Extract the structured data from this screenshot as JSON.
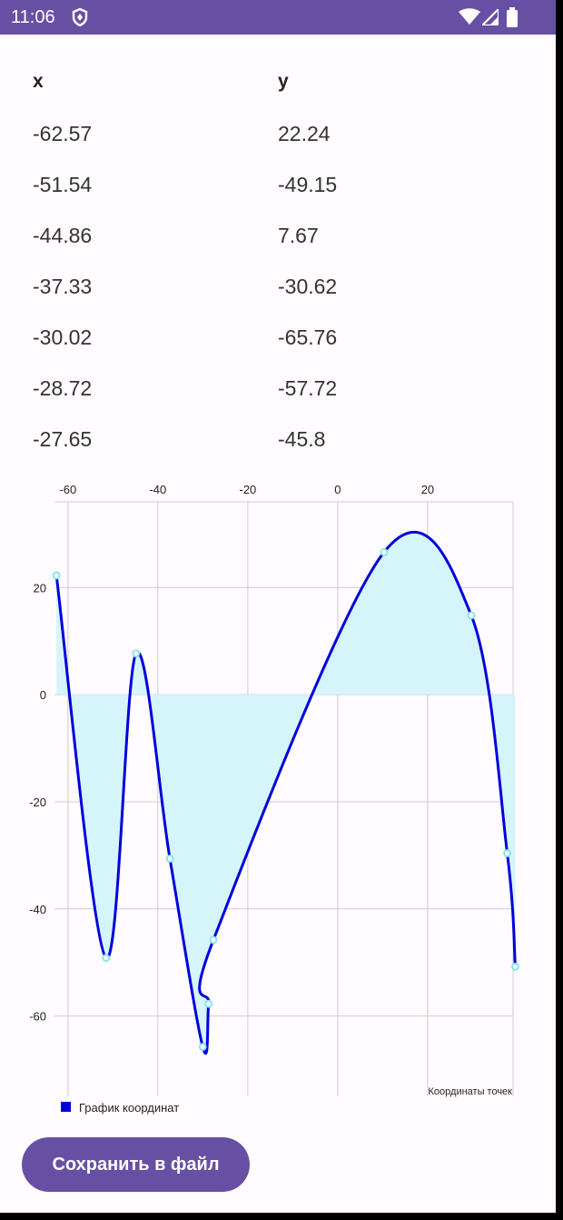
{
  "status_bar": {
    "time": "11:06",
    "icons": [
      "shield-icon",
      "wifi-icon",
      "signal-icon",
      "battery-icon"
    ]
  },
  "table": {
    "headers": {
      "x": "x",
      "y": "y"
    },
    "rows": [
      {
        "x": "-62.57",
        "y": "22.24"
      },
      {
        "x": "-51.54",
        "y": "-49.15"
      },
      {
        "x": "-44.86",
        "y": "7.67"
      },
      {
        "x": "-37.33",
        "y": "-30.62"
      },
      {
        "x": "-30.02",
        "y": "-65.76"
      },
      {
        "x": "-28.72",
        "y": "-57.72"
      },
      {
        "x": "-27.65",
        "y": "-45.8"
      }
    ]
  },
  "chart_data": {
    "type": "line",
    "description": "Координаты точек",
    "legend": {
      "label": "График координат",
      "placement": "bottom-left"
    },
    "xlim": [
      -63,
      39
    ],
    "ylim": [
      -75,
      36
    ],
    "x_ticks": [
      -60,
      -40,
      -20,
      0,
      20
    ],
    "y_ticks": [
      20,
      0,
      -20,
      -40,
      -60
    ],
    "grid": true,
    "fill_to_zero": true,
    "colors": {
      "line": "#0000dd",
      "fill": "#d6f5fa",
      "point": "#7fe3f2",
      "grid": "#cccccc"
    },
    "series": [
      {
        "name": "График координат",
        "points": [
          {
            "x": -62.57,
            "y": 22.24
          },
          {
            "x": -51.54,
            "y": -49.15
          },
          {
            "x": -44.86,
            "y": 7.67
          },
          {
            "x": -37.33,
            "y": -30.62
          },
          {
            "x": -30.02,
            "y": -65.76
          },
          {
            "x": -28.72,
            "y": -57.72
          },
          {
            "x": -27.65,
            "y": -45.8
          },
          {
            "x": 10.3,
            "y": 26.6
          },
          {
            "x": 29.7,
            "y": 14.8
          },
          {
            "x": 37.7,
            "y": -29.6
          },
          {
            "x": 39.5,
            "y": -50.8
          }
        ]
      }
    ]
  },
  "save_button": {
    "label": "Сохранить в файл"
  }
}
